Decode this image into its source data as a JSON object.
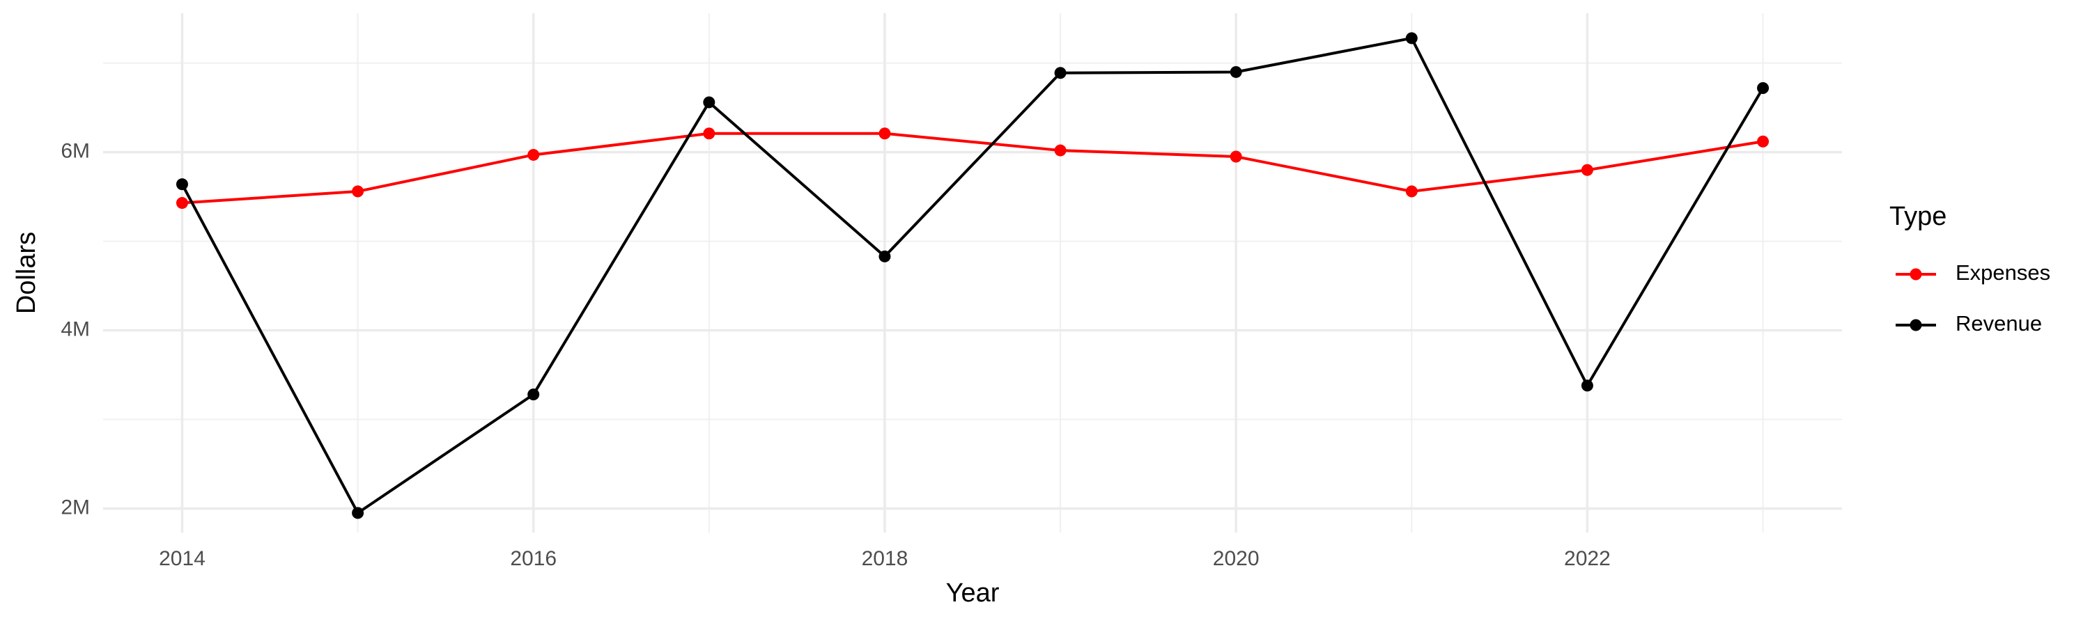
{
  "chart_data": {
    "type": "line",
    "x_label": "Year",
    "y_label": "Dollars",
    "legend_title": "Type",
    "x": [
      2014,
      2015,
      2016,
      2017,
      2018,
      2019,
      2020,
      2021,
      2022,
      2023
    ],
    "series": [
      {
        "name": "Expenses",
        "color": "#ff0000",
        "values": [
          5430000,
          5560000,
          5970000,
          6210000,
          6210000,
          6020000,
          5950000,
          5560000,
          5800000,
          6120000
        ]
      },
      {
        "name": "Revenue",
        "color": "#000000",
        "values": [
          5640000,
          1950000,
          3280000,
          6560000,
          4830000,
          6890000,
          6900000,
          7280000,
          3380000,
          6720000
        ]
      }
    ],
    "xlim": [
      2013.55,
      2023.45
    ],
    "xticks": [
      2014,
      2016,
      2018,
      2020,
      2022
    ],
    "ylim": [
      1730000,
      7560000
    ],
    "yticks": [
      {
        "value": 2000000,
        "label": "2M"
      },
      {
        "value": 4000000,
        "label": "4M"
      },
      {
        "value": 6000000,
        "label": "6M"
      }
    ],
    "grid": true,
    "legend": "right"
  }
}
